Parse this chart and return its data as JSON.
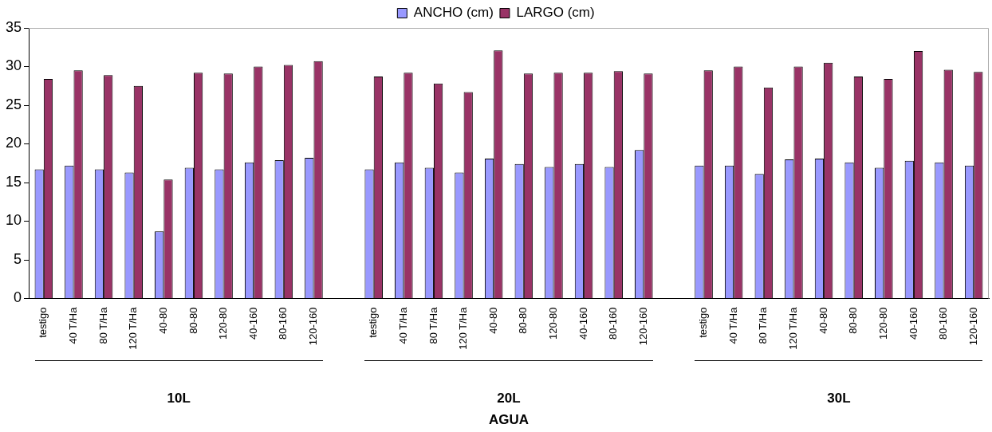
{
  "chart_data": {
    "type": "bar",
    "xlabel": "AGUA",
    "legend": "top",
    "categories": [
      "testigo",
      "40 T/Ha",
      "80 T/Ha",
      "120 T/Ha",
      "40-80",
      "80-80",
      "120-80",
      "40-160",
      "80-160",
      "120-160",
      null,
      "testigo",
      "40 T/Ha",
      "80 T/Ha",
      "120 T/Ha",
      "40-80",
      "80-80",
      "120-80",
      "40-160",
      "80-160",
      "120-160",
      null,
      "testigo",
      "40 T/Ha",
      "80 T/Ha",
      "120 T/Ha",
      "40-80",
      "80-80",
      "120-80",
      "40-160",
      "80-160",
      "120-160"
    ],
    "series": [
      {
        "name": "ANCHO (cm)",
        "color": "#9999ff",
        "values": [
          16.7,
          17.2,
          16.7,
          16.3,
          8.7,
          16.9,
          16.7,
          17.6,
          17.9,
          18.2,
          null,
          16.7,
          17.6,
          16.9,
          16.3,
          18.1,
          17.4,
          17.0,
          17.4,
          17.0,
          19.2,
          null,
          17.2,
          17.2,
          16.1,
          18.0,
          18.1,
          17.6,
          16.9,
          17.8,
          17.6,
          17.2
        ]
      },
      {
        "name": "LARGO (cm)",
        "color": "#993366",
        "values": [
          28.4,
          29.5,
          28.9,
          27.5,
          15.4,
          29.2,
          29.1,
          30.0,
          30.2,
          30.7,
          null,
          28.7,
          29.2,
          27.8,
          26.7,
          32.1,
          29.1,
          29.2,
          29.2,
          29.4,
          29.1,
          null,
          29.5,
          30.0,
          27.3,
          30.0,
          30.5,
          28.7,
          28.4,
          32.0,
          29.6,
          29.3
        ]
      }
    ],
    "ylim": [
      0,
      35
    ],
    "yticks": [
      0,
      5,
      10,
      15,
      20,
      25,
      30,
      35
    ],
    "grid": false,
    "annotations": [
      "10L",
      "20L",
      "30L"
    ]
  }
}
